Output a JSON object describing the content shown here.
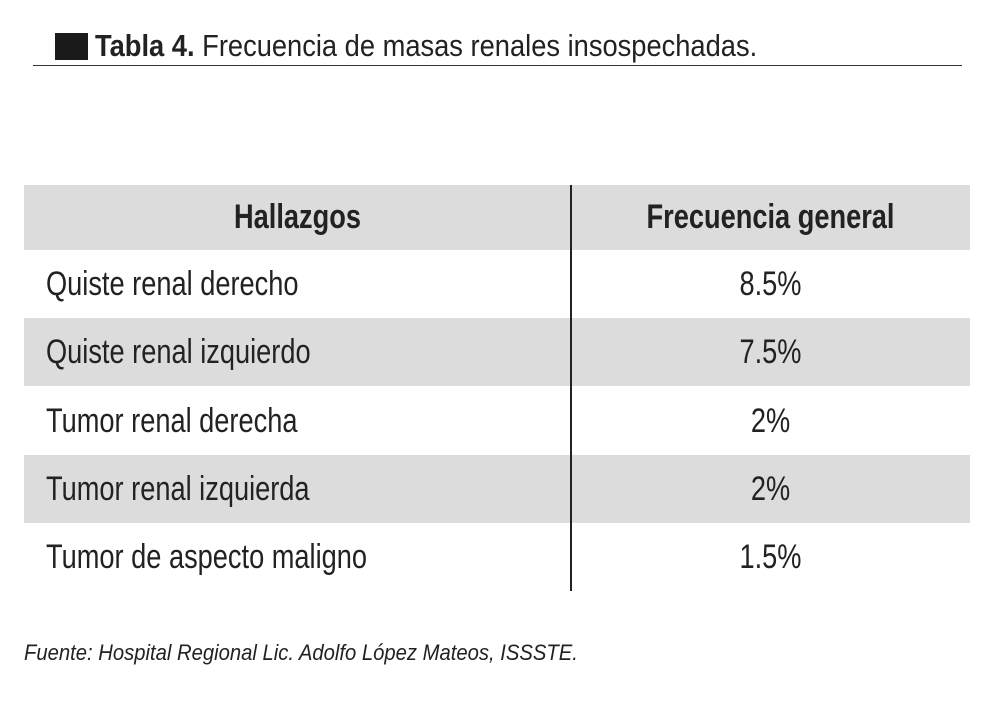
{
  "title": {
    "label": "Tabla 4.",
    "text": "Frecuencia de masas renales insospechadas."
  },
  "table": {
    "header": [
      "Hallazgos",
      "Frecuencia general"
    ],
    "rows": [
      [
        "Quiste renal derecho",
        "8.5%"
      ],
      [
        "Quiste renal izquierdo",
        "7.5%"
      ],
      [
        "Tumor renal derecha",
        "2%"
      ],
      [
        "Tumor renal izquierda",
        "2%"
      ],
      [
        "Tumor de aspecto maligno",
        "1.5%"
      ]
    ]
  },
  "source": "Fuente: Hospital Regional Lic. Adolfo López Mateos, ISSSTE."
}
